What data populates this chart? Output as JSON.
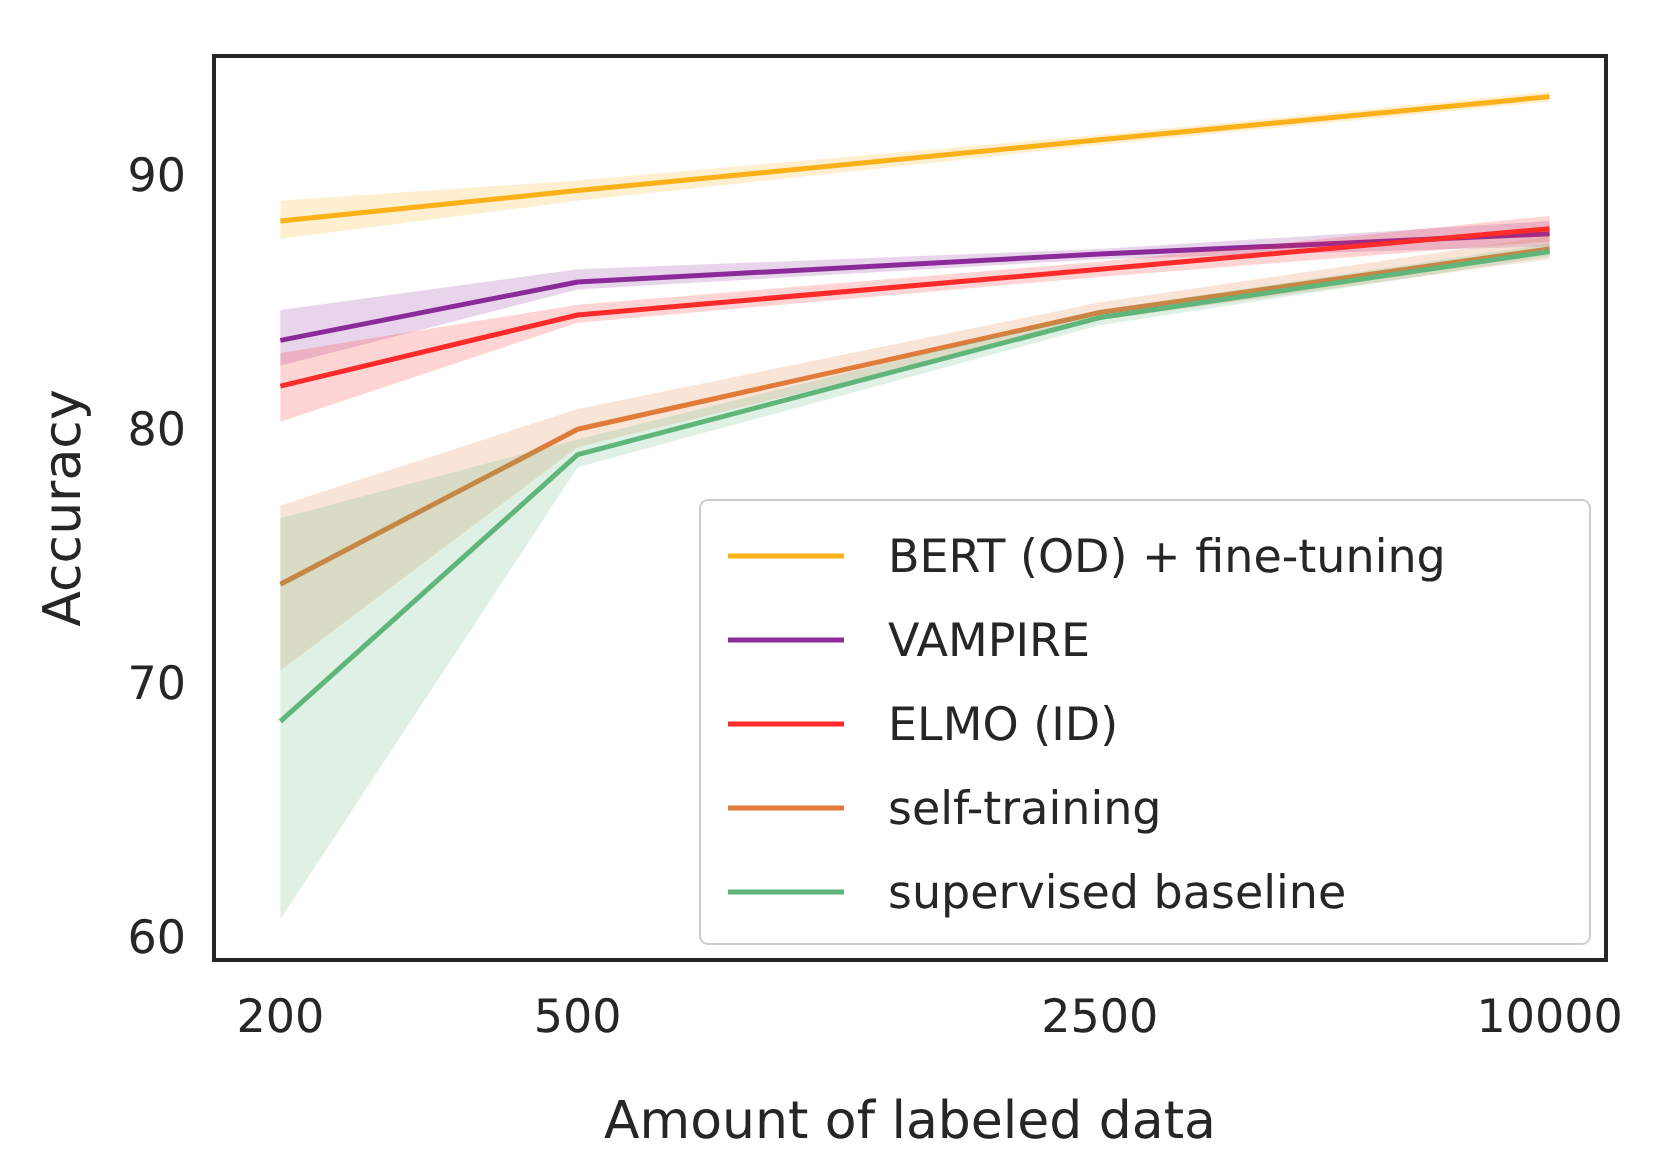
{
  "chart_data": {
    "type": "line",
    "xlabel": "Amount of labeled data",
    "ylabel": "Accuracy",
    "log": "x",
    "x": [
      200,
      500,
      2500,
      10000
    ],
    "xlim": [
      163,
      11900
    ],
    "xticks": [
      200,
      500,
      2500,
      10000
    ],
    "ylim": [
      59.1,
      94.7
    ],
    "yticks": [
      60,
      70,
      80,
      90
    ],
    "grid": false,
    "legend": "bottom right",
    "marker": "none",
    "line_style": "solid",
    "series": [
      {
        "name": "BERT (OD) + fine-tuning",
        "color": "#fbb117",
        "values": [
          88.2,
          89.4,
          91.4,
          93.1
        ],
        "lower": [
          87.5,
          89.0,
          91.2,
          92.9
        ],
        "upper": [
          89.0,
          89.8,
          91.6,
          93.3
        ]
      },
      {
        "name": "VAMPIRE",
        "color": "#8b2b9a",
        "values": [
          83.5,
          85.8,
          86.9,
          87.7
        ],
        "lower": [
          82.5,
          85.5,
          86.7,
          87.2
        ],
        "upper": [
          84.7,
          86.3,
          87.1,
          88.2
        ]
      },
      {
        "name": "ELMO (ID)",
        "color": "#ff2a2a",
        "values": [
          81.7,
          84.5,
          86.3,
          87.9
        ],
        "lower": [
          80.3,
          84.2,
          86.0,
          87.4
        ],
        "upper": [
          83.0,
          84.9,
          86.6,
          88.4
        ]
      },
      {
        "name": "self-training",
        "color": "#e07b39",
        "values": [
          73.9,
          80.0,
          84.6,
          87.1
        ],
        "lower": [
          70.5,
          79.3,
          84.3,
          86.7
        ],
        "upper": [
          77.0,
          80.8,
          85.0,
          87.6
        ]
      },
      {
        "name": "supervised baseline",
        "color": "#5fb57a",
        "values": [
          68.5,
          79.0,
          84.4,
          87.0
        ],
        "lower": [
          60.7,
          78.5,
          84.1,
          86.8
        ],
        "upper": [
          76.5,
          79.6,
          84.7,
          87.3
        ]
      }
    ]
  }
}
